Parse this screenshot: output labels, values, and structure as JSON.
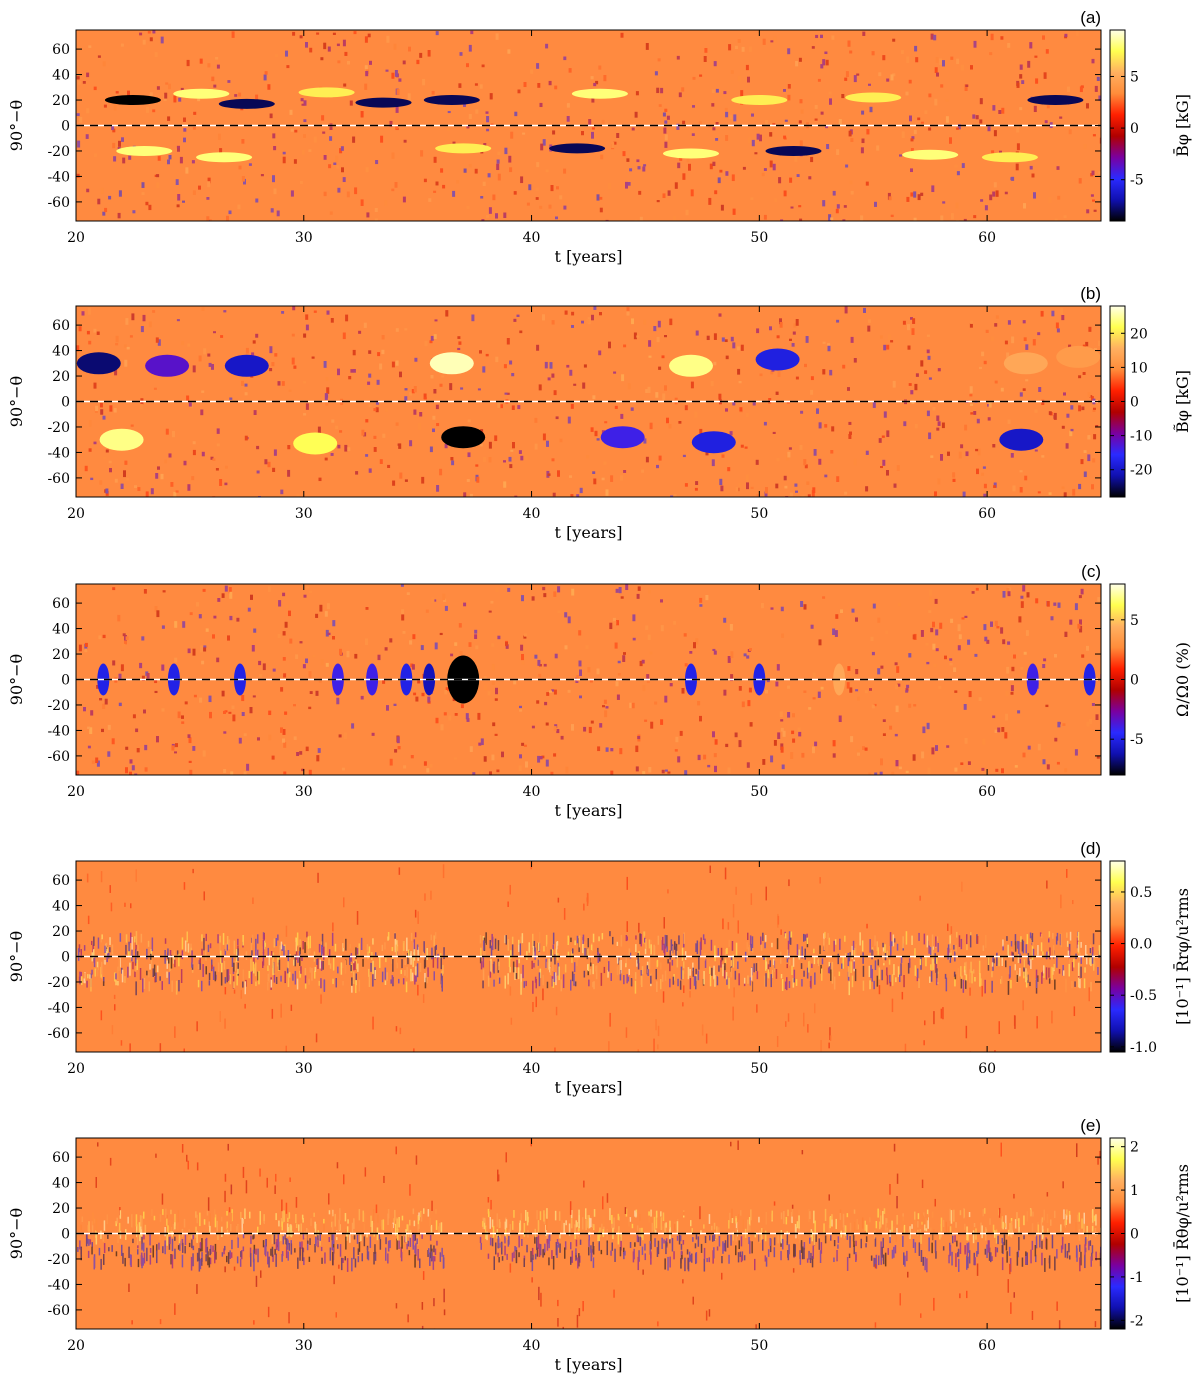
{
  "figure": {
    "colormap": [
      "#000000",
      "#1010b0",
      "#2a2aff",
      "#7a00a0",
      "#b00000",
      "#ff2000",
      "#ff8c3a",
      "#ffb060",
      "#ffff50",
      "#ffffe8"
    ],
    "panel_bg_color": "#ff8a40",
    "background": "#ffffff"
  },
  "chart_data": [
    {
      "panel_label": "(a)",
      "type": "heatmap",
      "xlabel": "t [years]",
      "ylabel": "90°−θ",
      "colorbar_label": "B̄φ [kG]",
      "x_ticks": [
        "20",
        "30",
        "40",
        "50",
        "60"
      ],
      "y_ticks": [
        "60",
        "40",
        "20",
        "0",
        "-20",
        "-40",
        "-60"
      ],
      "colorbar_ticks": [
        "5",
        "0",
        "-5"
      ],
      "xlim": [
        20,
        65
      ],
      "ylim": [
        -75,
        75
      ],
      "color_range": [
        -9,
        9.5
      ],
      "equator_dashed_line": true,
      "features": [
        {
          "t": 22.5,
          "lat": 20,
          "value": -9
        },
        {
          "t": 25.5,
          "lat": 25,
          "value": 8
        },
        {
          "t": 27.5,
          "lat": 17,
          "value": -8
        },
        {
          "t": 31,
          "lat": 26,
          "value": 7
        },
        {
          "t": 33.5,
          "lat": 18,
          "value": -8
        },
        {
          "t": 36.5,
          "lat": 20,
          "value": -8
        },
        {
          "t": 43,
          "lat": 25,
          "value": 8
        },
        {
          "t": 50,
          "lat": 20,
          "value": 7
        },
        {
          "t": 55,
          "lat": 22,
          "value": 7
        },
        {
          "t": 63,
          "lat": 20,
          "value": -8
        },
        {
          "t": 23,
          "lat": -20,
          "value": 8
        },
        {
          "t": 26.5,
          "lat": -25,
          "value": 8
        },
        {
          "t": 37,
          "lat": -18,
          "value": 7
        },
        {
          "t": 42,
          "lat": -18,
          "value": -8
        },
        {
          "t": 47,
          "lat": -22,
          "value": 8
        },
        {
          "t": 51.5,
          "lat": -20,
          "value": -8
        },
        {
          "t": 57.5,
          "lat": -23,
          "value": 8
        },
        {
          "t": 61,
          "lat": -25,
          "value": 7
        }
      ]
    },
    {
      "panel_label": "(b)",
      "type": "heatmap",
      "xlabel": "t [years]",
      "ylabel": "90°−θ",
      "colorbar_label": "B̃φ [kG]",
      "x_ticks": [
        "20",
        "30",
        "40",
        "50",
        "60"
      ],
      "y_ticks": [
        "60",
        "40",
        "20",
        "0",
        "-20",
        "-40",
        "-60"
      ],
      "colorbar_ticks": [
        "20",
        "10",
        "0",
        "-10",
        "-20"
      ],
      "xlim": [
        20,
        65
      ],
      "ylim": [
        -75,
        75
      ],
      "color_range": [
        -28,
        28
      ],
      "equator_dashed_line": true,
      "features": [
        {
          "t": 21,
          "lat": 30,
          "value": -24
        },
        {
          "t": 24,
          "lat": 28,
          "value": -12
        },
        {
          "t": 27.5,
          "lat": 28,
          "value": -20
        },
        {
          "t": 36.5,
          "lat": 30,
          "value": 26
        },
        {
          "t": 47,
          "lat": 28,
          "value": 24
        },
        {
          "t": 50.8,
          "lat": 33,
          "value": -18
        },
        {
          "t": 61.7,
          "lat": 30,
          "value": 14
        },
        {
          "t": 64,
          "lat": 35,
          "value": 12
        },
        {
          "t": 22,
          "lat": -30,
          "value": 24
        },
        {
          "t": 30.5,
          "lat": -33,
          "value": 22
        },
        {
          "t": 37,
          "lat": -28,
          "value": -28
        },
        {
          "t": 44,
          "lat": -28,
          "value": -14
        },
        {
          "t": 48,
          "lat": -32,
          "value": -18
        },
        {
          "t": 61.5,
          "lat": -30,
          "value": -20
        }
      ]
    },
    {
      "panel_label": "(c)",
      "type": "heatmap",
      "xlabel": "t [years]",
      "ylabel": "90°−θ",
      "colorbar_label": "Ω/Ω0 (%)",
      "x_ticks": [
        "20",
        "30",
        "40",
        "50",
        "60"
      ],
      "y_ticks": [
        "60",
        "40",
        "20",
        "0",
        "-20",
        "-40",
        "-60"
      ],
      "colorbar_ticks": [
        "5",
        "0",
        "-5"
      ],
      "xlim": [
        20,
        65
      ],
      "ylim": [
        -75,
        75
      ],
      "color_range": [
        -8,
        8
      ],
      "equator_dashed_line": true,
      "features": [
        {
          "t": 21.2,
          "lat": 0,
          "value": -5
        },
        {
          "t": 24.3,
          "lat": 0,
          "value": -5
        },
        {
          "t": 27.2,
          "lat": 0,
          "value": -5
        },
        {
          "t": 31.5,
          "lat": 0,
          "value": -4
        },
        {
          "t": 33,
          "lat": 0,
          "value": -4
        },
        {
          "t": 34.5,
          "lat": 0,
          "value": -5
        },
        {
          "t": 35.5,
          "lat": 0,
          "value": -6
        },
        {
          "t": 37,
          "lat": 0,
          "value": -8
        },
        {
          "t": 47,
          "lat": 0,
          "value": -5
        },
        {
          "t": 50,
          "lat": 0,
          "value": -5
        },
        {
          "t": 53.5,
          "lat": 0,
          "value": 4
        },
        {
          "t": 62,
          "lat": 0,
          "value": -4
        },
        {
          "t": 64.5,
          "lat": 0,
          "value": -5
        }
      ]
    },
    {
      "panel_label": "(d)",
      "type": "heatmap",
      "xlabel": "t [years]",
      "ylabel": "90°−θ",
      "colorbar_label": "[10⁻¹] R̄rφ/u²rms",
      "x_ticks": [
        "20",
        "30",
        "40",
        "50",
        "60"
      ],
      "y_ticks": [
        "60",
        "40",
        "20",
        "0",
        "-20",
        "-40",
        "-60"
      ],
      "colorbar_ticks": [
        "0.5",
        "0.0",
        "-0.5",
        "-1.0"
      ],
      "xlim": [
        20,
        65
      ],
      "ylim": [
        -75,
        75
      ],
      "color_range": [
        -1.05,
        0.8
      ],
      "equator_dashed_line": true,
      "active_band_lat": [
        -20,
        20
      ],
      "quiet_interval_t": [
        36.2,
        37.7
      ]
    },
    {
      "panel_label": "(e)",
      "type": "heatmap",
      "xlabel": "t [years]",
      "ylabel": "90°−θ",
      "colorbar_label": "[10⁻¹] R̄θφ/u²rms",
      "x_ticks": [
        "20",
        "30",
        "40",
        "50",
        "60"
      ],
      "y_ticks": [
        "60",
        "40",
        "20",
        "0",
        "-20",
        "-40",
        "-60"
      ],
      "colorbar_ticks": [
        "2",
        "1",
        "0",
        "-1",
        "-2"
      ],
      "xlim": [
        20,
        65
      ],
      "ylim": [
        -75,
        75
      ],
      "color_range": [
        -2.2,
        2.2
      ],
      "equator_dashed_line": true,
      "active_band_lat": [
        -20,
        20
      ],
      "quiet_interval_t": [
        36.2,
        37.7
      ]
    }
  ]
}
